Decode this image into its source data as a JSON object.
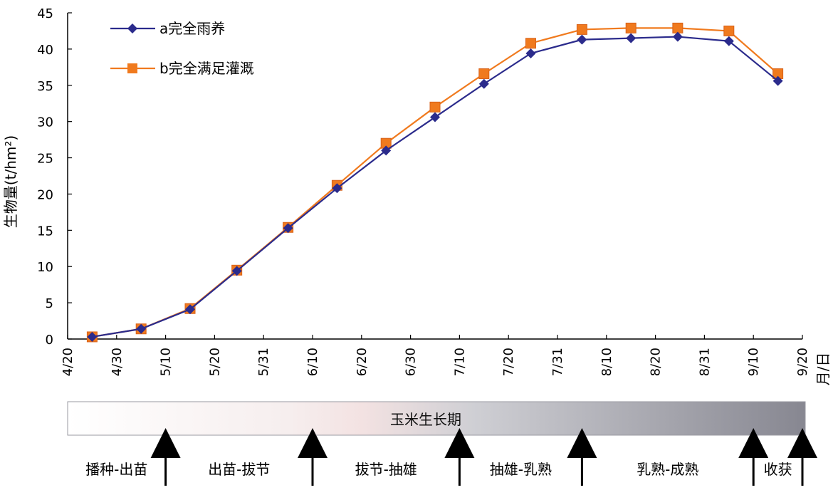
{
  "chart_data": {
    "type": "line",
    "title": "",
    "ylabel": "生物量(t/hm²)",
    "xlabel": "月/日",
    "ylim": [
      0,
      45
    ],
    "yticks": [
      0,
      5,
      10,
      15,
      20,
      25,
      30,
      35,
      40,
      45
    ],
    "x_tick_labels": [
      "4/20",
      "4/30",
      "5/10",
      "5/20",
      "5/31",
      "6/10",
      "6/20",
      "6/30",
      "7/10",
      "7/20",
      "7/31",
      "8/10",
      "8/20",
      "8/31",
      "9/10",
      "9/20"
    ],
    "x_points": [
      "4/25",
      "5/5",
      "5/15",
      "5/25",
      "6/5",
      "6/15",
      "6/25",
      "7/5",
      "7/15",
      "7/25",
      "8/5",
      "8/15",
      "8/25",
      "9/5",
      "9/15"
    ],
    "legend_position": "top-left",
    "grid": false,
    "series": [
      {
        "name": "a完全雨养",
        "color": "#2b2b8c",
        "marker": "diamond",
        "values": [
          0.3,
          1.4,
          4.1,
          9.4,
          15.3,
          20.8,
          26.0,
          30.6,
          35.2,
          39.4,
          41.3,
          41.5,
          41.7,
          41.1,
          35.6
        ]
      },
      {
        "name": "b完全满足灌溉",
        "color": "#f07a1e",
        "marker": "square",
        "values": [
          0.3,
          1.4,
          4.2,
          9.5,
          15.4,
          21.2,
          27.0,
          32.0,
          36.6,
          40.8,
          42.7,
          42.9,
          42.9,
          42.5,
          36.6
        ]
      }
    ]
  },
  "growth_band": {
    "title": "玉米生长期",
    "stages": [
      "播种-出苗",
      "出苗-拔节",
      "拔节-抽雄",
      "抽雄-乳熟",
      "乳熟-成熟",
      "收获"
    ],
    "boundary_dates": [
      "5/10",
      "6/10",
      "7/10",
      "8/5",
      "9/10",
      "9/20"
    ]
  }
}
